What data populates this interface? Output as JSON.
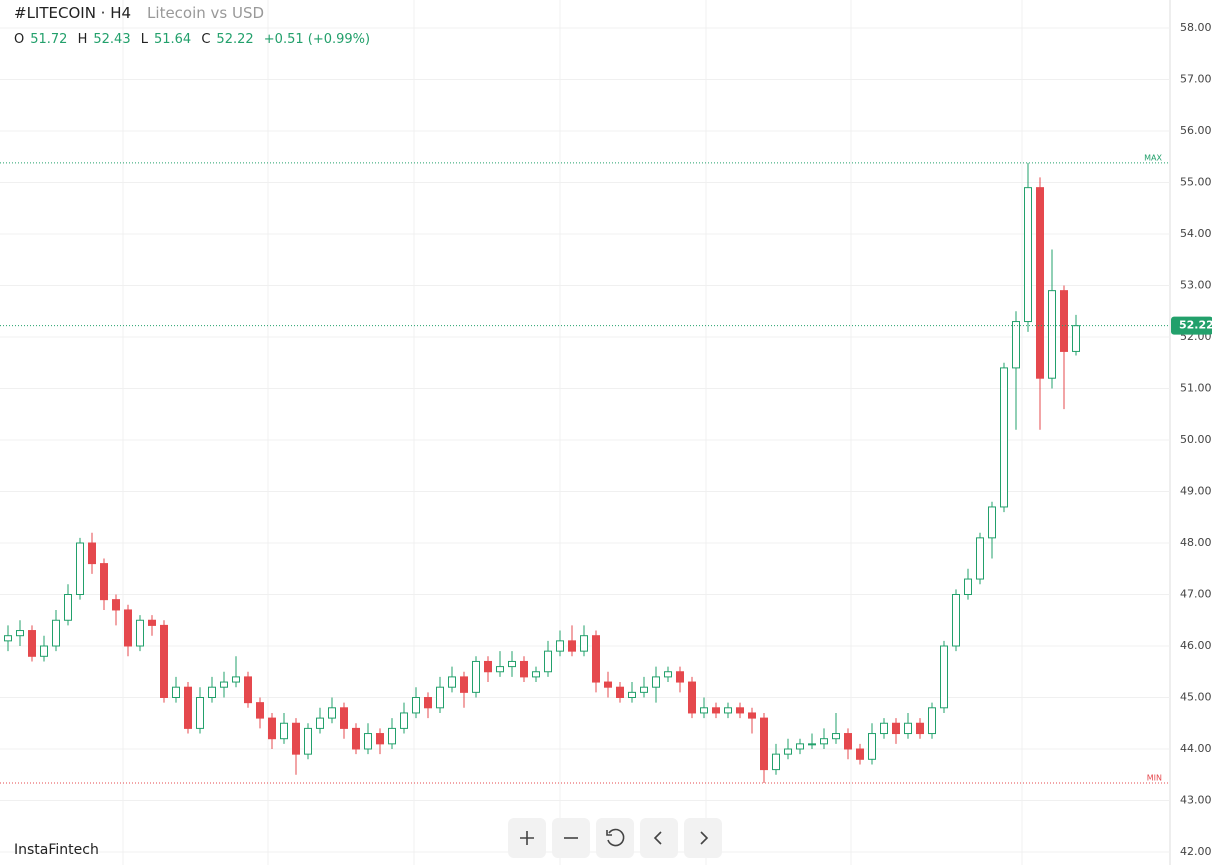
{
  "chart_data": {
    "type": "candlestick",
    "title": "#LITECOIN · H4",
    "subtitle": "Litecoin vs USD",
    "ohlc_labels": [
      "O",
      "H",
      "L",
      "C"
    ],
    "change_label": "+0.51 (+0.99%)",
    "brand": "InstaFintech",
    "up_color": "#22a06b",
    "down_color": "#e5484d",
    "ylim": [
      42,
      58
    ],
    "yticks": [
      {
        "value": 42,
        "label": "42.00"
      },
      {
        "value": 43,
        "label": "43.00"
      },
      {
        "value": 44,
        "label": "44.00"
      },
      {
        "value": 45,
        "label": "45.00"
      },
      {
        "value": 46,
        "label": "46.00"
      },
      {
        "value": 47,
        "label": "47.00"
      },
      {
        "value": 48,
        "label": "48.00"
      },
      {
        "value": 49,
        "label": "49.00"
      },
      {
        "value": 50,
        "label": "50.00"
      },
      {
        "value": 51,
        "label": "51.00"
      },
      {
        "value": 52,
        "label": "52.00"
      },
      {
        "value": 53,
        "label": "53.00"
      },
      {
        "value": 54,
        "label": "54.00"
      },
      {
        "value": 55,
        "label": "55.00"
      },
      {
        "value": 56,
        "label": "56.00"
      },
      {
        "value": 57,
        "label": "57.00"
      },
      {
        "value": 58,
        "label": "58.00"
      }
    ],
    "grid": true,
    "max_line": {
      "label": "MAX",
      "value": 55.38
    },
    "min_line": {
      "label": "MIN",
      "value": 43.34
    },
    "series": {
      "open": [
        46.1,
        46.2,
        46.3,
        45.8,
        46.0,
        46.5,
        47.0,
        48.0,
        47.6,
        46.9,
        46.7,
        46.0,
        46.5,
        46.4,
        45.0,
        45.2,
        44.4,
        45.0,
        45.2,
        45.3,
        45.4,
        44.9,
        44.6,
        44.2,
        44.5,
        43.9,
        44.4,
        44.6,
        44.8,
        44.4,
        44.0,
        44.3,
        44.1,
        44.4,
        44.7,
        45.0,
        44.8,
        45.2,
        45.4,
        45.1,
        45.7,
        45.5,
        45.6,
        45.7,
        45.4,
        45.5,
        45.9,
        46.1,
        45.9,
        46.2,
        45.3,
        45.2,
        45.0,
        45.1,
        45.2,
        45.4,
        45.5,
        45.3,
        44.7,
        44.8,
        44.7,
        44.8,
        44.7,
        44.6,
        43.6,
        43.9,
        44.0,
        44.1,
        44.1,
        44.2,
        44.3,
        44.0,
        43.8,
        44.3,
        44.5,
        44.3,
        44.5,
        44.3,
        44.8,
        46.0,
        47.0,
        47.3,
        48.1,
        48.7,
        51.4,
        52.3,
        54.9,
        51.2,
        52.9,
        51.72
      ],
      "high": [
        46.4,
        46.5,
        46.4,
        46.2,
        46.7,
        47.2,
        48.1,
        48.2,
        47.7,
        47.0,
        46.8,
        46.6,
        46.6,
        46.5,
        45.4,
        45.3,
        45.2,
        45.4,
        45.5,
        45.8,
        45.5,
        45.0,
        44.7,
        44.7,
        44.6,
        44.5,
        44.8,
        45.0,
        44.9,
        44.5,
        44.5,
        44.4,
        44.6,
        44.9,
        45.2,
        45.1,
        45.4,
        45.6,
        45.5,
        45.8,
        45.8,
        45.9,
        45.9,
        45.8,
        45.6,
        46.1,
        46.3,
        46.4,
        46.4,
        46.3,
        45.5,
        45.3,
        45.3,
        45.4,
        45.6,
        45.6,
        45.6,
        45.4,
        45.0,
        44.9,
        44.9,
        44.9,
        44.8,
        44.7,
        44.1,
        44.2,
        44.2,
        44.3,
        44.4,
        44.7,
        44.4,
        44.1,
        44.5,
        44.6,
        44.6,
        44.7,
        44.6,
        44.9,
        46.1,
        47.1,
        47.5,
        48.2,
        48.8,
        51.5,
        52.5,
        55.38,
        55.1,
        53.7,
        53.0,
        52.43
      ],
      "low": [
        45.9,
        46.0,
        45.7,
        45.7,
        45.9,
        46.4,
        46.9,
        47.4,
        46.7,
        46.4,
        45.8,
        45.9,
        46.2,
        44.9,
        44.9,
        44.3,
        44.3,
        44.9,
        45.0,
        45.2,
        44.8,
        44.4,
        44.0,
        44.1,
        43.5,
        43.8,
        44.3,
        44.5,
        44.2,
        43.9,
        43.9,
        43.9,
        44.0,
        44.3,
        44.6,
        44.6,
        44.7,
        45.1,
        44.8,
        45.0,
        45.3,
        45.4,
        45.4,
        45.3,
        45.3,
        45.4,
        45.8,
        45.8,
        45.8,
        45.1,
        45.0,
        44.9,
        44.9,
        45.0,
        44.9,
        45.3,
        45.1,
        44.6,
        44.6,
        44.6,
        44.6,
        44.6,
        44.3,
        43.34,
        43.5,
        43.8,
        43.9,
        44.0,
        44.0,
        44.1,
        43.8,
        43.7,
        43.7,
        44.2,
        44.1,
        44.2,
        44.2,
        44.2,
        44.7,
        45.9,
        46.9,
        47.2,
        47.7,
        48.6,
        50.2,
        52.1,
        50.2,
        51.0,
        50.6,
        51.64
      ],
      "close": [
        46.2,
        46.3,
        45.8,
        46.0,
        46.5,
        47.0,
        48.0,
        47.6,
        46.9,
        46.7,
        46.0,
        46.5,
        46.4,
        45.0,
        45.2,
        44.4,
        45.0,
        45.2,
        45.3,
        45.4,
        44.9,
        44.6,
        44.2,
        44.5,
        43.9,
        44.4,
        44.6,
        44.8,
        44.4,
        44.0,
        44.3,
        44.1,
        44.4,
        44.7,
        45.0,
        44.8,
        45.2,
        45.4,
        45.1,
        45.7,
        45.5,
        45.6,
        45.7,
        45.4,
        45.5,
        45.9,
        46.1,
        45.9,
        46.2,
        45.3,
        45.2,
        45.0,
        45.1,
        45.2,
        45.4,
        45.5,
        45.3,
        44.7,
        44.8,
        44.7,
        44.8,
        44.7,
        44.6,
        43.6,
        43.9,
        44.0,
        44.1,
        44.1,
        44.2,
        44.3,
        44.0,
        43.8,
        44.3,
        44.5,
        44.3,
        44.5,
        44.3,
        44.8,
        46.0,
        47.0,
        47.3,
        48.1,
        48.7,
        51.4,
        52.3,
        54.9,
        51.2,
        52.9,
        51.72,
        52.22
      ]
    }
  }
}
